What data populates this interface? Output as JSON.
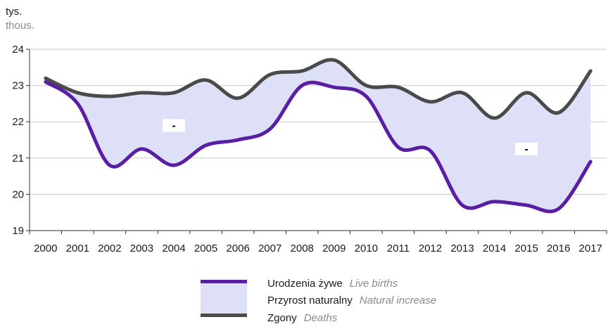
{
  "unit": {
    "pl": "tys.",
    "en": "thous."
  },
  "colors": {
    "births": "#5a1ea4",
    "deaths": "#4a4a4a",
    "fill": "#dde0f7",
    "axis": "#333333"
  },
  "chart_data": {
    "type": "line",
    "x": [
      "2000",
      "2001",
      "2002",
      "2003",
      "2004",
      "2005",
      "2006",
      "2007",
      "2008",
      "2009",
      "2010",
      "2011",
      "2012",
      "2013",
      "2014",
      "2015",
      "2016",
      "2017"
    ],
    "ylim": [
      19,
      24
    ],
    "yticks": [
      19,
      20,
      21,
      22,
      23,
      24
    ],
    "grid": true,
    "series": [
      {
        "name": "Urodzenia żywe",
        "name_en": "Live births",
        "values": [
          23.1,
          22.5,
          20.8,
          21.25,
          20.8,
          21.35,
          21.5,
          21.8,
          23.0,
          22.95,
          22.7,
          21.3,
          21.2,
          19.7,
          19.8,
          19.7,
          19.6,
          20.9
        ]
      },
      {
        "name": "Zgony",
        "name_en": "Deaths",
        "values": [
          23.2,
          22.8,
          22.7,
          22.8,
          22.8,
          23.15,
          22.65,
          23.3,
          23.4,
          23.7,
          23.0,
          22.95,
          22.55,
          22.8,
          22.1,
          22.8,
          22.25,
          23.4
        ]
      }
    ],
    "annotations": [
      {
        "text": "-",
        "x": "2004",
        "y": 21.9
      },
      {
        "text": "-",
        "x": "2015",
        "y": 21.25
      }
    ]
  },
  "legend": [
    {
      "key": "births",
      "pl": "Urodzenia żywe",
      "en": "Live births"
    },
    {
      "key": "increase",
      "pl": "Przyrost naturalny",
      "en": "Natural increase"
    },
    {
      "key": "deaths",
      "pl": "Zgony",
      "en": "Deaths"
    }
  ]
}
